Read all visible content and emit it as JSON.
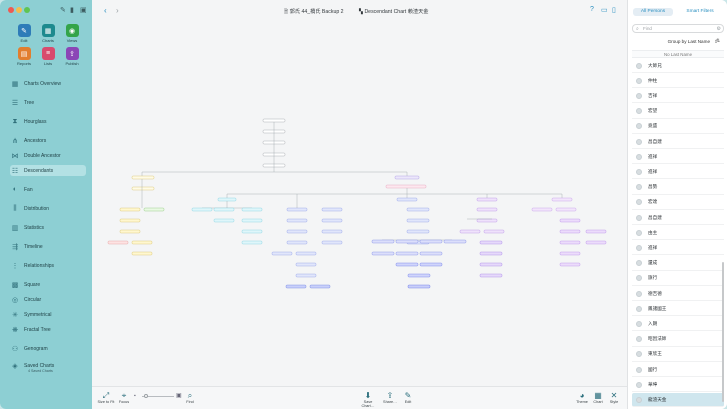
{
  "window": {
    "title": "郭氏 44_橋氏 Backup 2",
    "chart_title": "Descendant Chart 赖渣天金"
  },
  "toolbar": {
    "edit": "Edit",
    "charts": "Charts",
    "views": "Views",
    "reports": "Reports",
    "lists": "Lists",
    "publish": "Publish"
  },
  "sidebar": {
    "items": [
      {
        "label": "Charts Overview",
        "icon": "grid-icon"
      },
      {
        "label": "Tree",
        "icon": "tree-icon"
      },
      {
        "label": "Hourglass",
        "icon": "hourglass-icon"
      },
      {
        "label": "Ancestors",
        "icon": "ancestors-icon"
      },
      {
        "label": "Double Ancestor",
        "icon": "double-ancestor-icon"
      },
      {
        "label": "Descendants",
        "icon": "descendants-icon"
      },
      {
        "label": "Fan",
        "icon": "fan-icon"
      },
      {
        "label": "Distribution",
        "icon": "distribution-icon"
      },
      {
        "label": "Statistics",
        "icon": "statistics-icon"
      },
      {
        "label": "Timeline",
        "icon": "timeline-icon"
      },
      {
        "label": "Relationships",
        "icon": "relationships-icon"
      },
      {
        "label": "Square",
        "icon": "square-icon"
      },
      {
        "label": "Circular",
        "icon": "circular-icon"
      },
      {
        "label": "Symmetrical",
        "icon": "symmetrical-icon"
      },
      {
        "label": "Fractal Tree",
        "icon": "fractal-icon"
      },
      {
        "label": "Genogram",
        "icon": "genogram-icon"
      },
      {
        "label": "Saved Charts",
        "icon": "saved-charts-icon"
      }
    ],
    "saved_sub": "4 Saved Charts",
    "selected": "Descendants"
  },
  "bottombar": {
    "size_to_fit": "Size to Fit",
    "focus": "Focus",
    "find": "Find",
    "save_chart": "Save Chart…",
    "share": "Share…",
    "edit": "Edit",
    "theme": "Theme",
    "chart": "Chart",
    "style": "Style"
  },
  "right": {
    "seg_all": "All Persons",
    "seg_smart": "Smart Filters",
    "search_placeholder": "Find",
    "group": "Group by Last Name",
    "section": "No Last Name",
    "persons": [
      "大師兄",
      "仲柱",
      "吉祥",
      "宏望",
      "竟盛",
      "昌自建",
      "進祥",
      "進祥",
      "昌勢",
      "宏達",
      "昌自建",
      "由主",
      "進祥",
      "還成",
      "旗行",
      "德吉德",
      "鳳諸國王",
      "入朗",
      "昭因法師",
      "東欣王",
      "國行",
      "華坤",
      "龍渣天金"
    ],
    "selected_index": 22
  },
  "colors": {
    "sidebar": "#8dcfd3",
    "accent": "#2a8fc0"
  }
}
